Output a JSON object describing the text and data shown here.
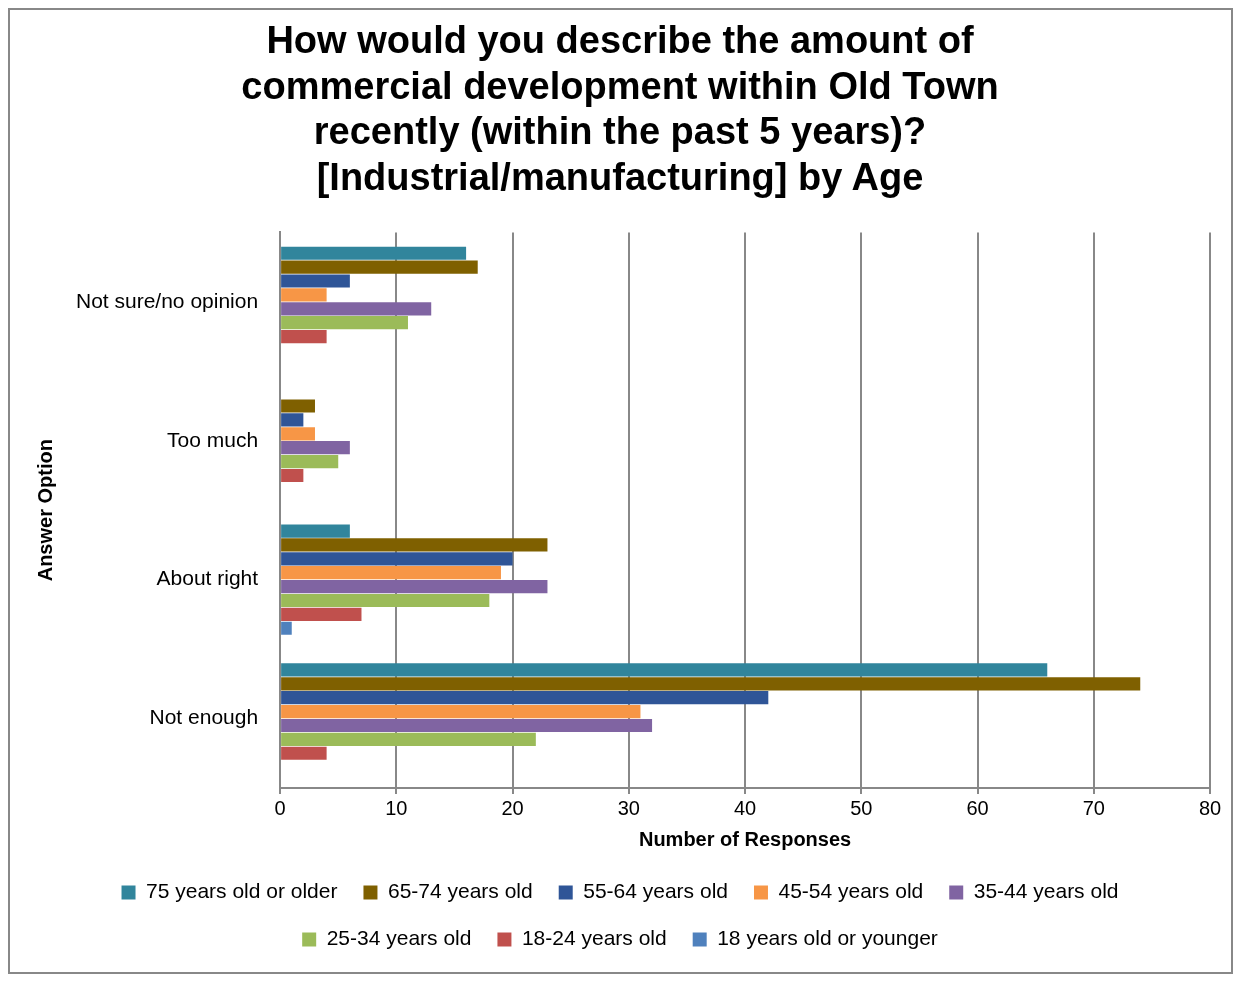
{
  "chart_data": {
    "type": "bar",
    "orientation": "horizontal",
    "title": "How would you describe the amount of commercial development within Old Town recently (within the past 5 years)? [Industrial/manufacturing] by Age",
    "xlabel": "Number of Responses",
    "ylabel": "Answer Option",
    "categories": [
      "Not sure/no opinion",
      "Too much",
      "About right",
      "Not enough"
    ],
    "series": [
      {
        "name": "75 years old or older",
        "color": "#31859c",
        "values": [
          16,
          0,
          6,
          66
        ]
      },
      {
        "name": "65-74 years old",
        "color": "#7f6000",
        "values": [
          17,
          3,
          23,
          74
        ]
      },
      {
        "name": "55-64 years old",
        "color": "#2f5597",
        "values": [
          6,
          2,
          20,
          42
        ]
      },
      {
        "name": "45-54 years old",
        "color": "#f79646",
        "values": [
          4,
          3,
          19,
          31
        ]
      },
      {
        "name": "35-44 years old",
        "color": "#8064a2",
        "values": [
          13,
          6,
          23,
          32
        ]
      },
      {
        "name": "25-34 years old",
        "color": "#9bbb59",
        "values": [
          11,
          5,
          18,
          22
        ]
      },
      {
        "name": "18-24 years old",
        "color": "#c0504d",
        "values": [
          4,
          2,
          7,
          4
        ]
      },
      {
        "name": "18 years old or younger",
        "color": "#4f81bd",
        "values": [
          0,
          0,
          1,
          0
        ]
      }
    ],
    "xlim": [
      0,
      80
    ],
    "xticks": [
      0,
      10,
      20,
      30,
      40,
      50,
      60,
      70,
      80
    ],
    "grid": "x",
    "legend": "bottom"
  }
}
